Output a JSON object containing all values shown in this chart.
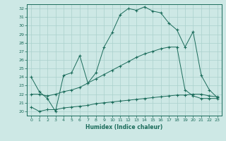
{
  "xlabel": "Humidex (Indice chaleur)",
  "bg_color": "#cde8e5",
  "line_color": "#1a6b5a",
  "grid_color": "#aad0cc",
  "xlim": [
    -0.5,
    23.5
  ],
  "ylim": [
    19.5,
    32.5
  ],
  "xticks": [
    0,
    1,
    2,
    3,
    4,
    5,
    6,
    7,
    8,
    9,
    10,
    11,
    12,
    13,
    14,
    15,
    16,
    17,
    18,
    19,
    20,
    21,
    22,
    23
  ],
  "yticks": [
    20,
    21,
    22,
    23,
    24,
    25,
    26,
    27,
    28,
    29,
    30,
    31,
    32
  ],
  "line1_x": [
    0,
    1,
    2,
    3,
    4,
    5,
    6,
    7,
    8,
    9,
    10,
    11,
    12,
    13,
    14,
    15,
    16,
    17,
    18,
    19,
    20,
    21,
    22,
    23
  ],
  "line1_y": [
    24.0,
    22.3,
    21.5,
    20.0,
    24.2,
    24.5,
    26.5,
    23.3,
    24.5,
    27.5,
    29.2,
    31.3,
    32.0,
    31.8,
    32.2,
    31.7,
    31.5,
    30.3,
    29.5,
    27.5,
    29.3,
    24.2,
    22.5,
    21.6
  ],
  "line2_x": [
    0,
    1,
    2,
    3,
    4,
    5,
    6,
    7,
    8,
    9,
    10,
    11,
    12,
    13,
    14,
    15,
    16,
    17,
    18,
    19,
    20,
    21,
    22,
    23
  ],
  "line2_y": [
    22.0,
    22.0,
    21.8,
    22.0,
    22.3,
    22.5,
    22.8,
    23.3,
    23.8,
    24.3,
    24.8,
    25.3,
    25.8,
    26.3,
    26.7,
    27.0,
    27.3,
    27.5,
    27.5,
    22.5,
    21.8,
    21.5,
    21.5,
    21.5
  ],
  "line3_x": [
    0,
    1,
    2,
    3,
    4,
    5,
    6,
    7,
    8,
    9,
    10,
    11,
    12,
    13,
    14,
    15,
    16,
    17,
    18,
    19,
    20,
    21,
    22,
    23
  ],
  "line3_y": [
    20.5,
    20.0,
    20.2,
    20.2,
    20.4,
    20.5,
    20.6,
    20.7,
    20.9,
    21.0,
    21.1,
    21.2,
    21.3,
    21.4,
    21.5,
    21.6,
    21.7,
    21.8,
    21.9,
    21.9,
    22.0,
    22.0,
    21.8,
    21.7
  ]
}
